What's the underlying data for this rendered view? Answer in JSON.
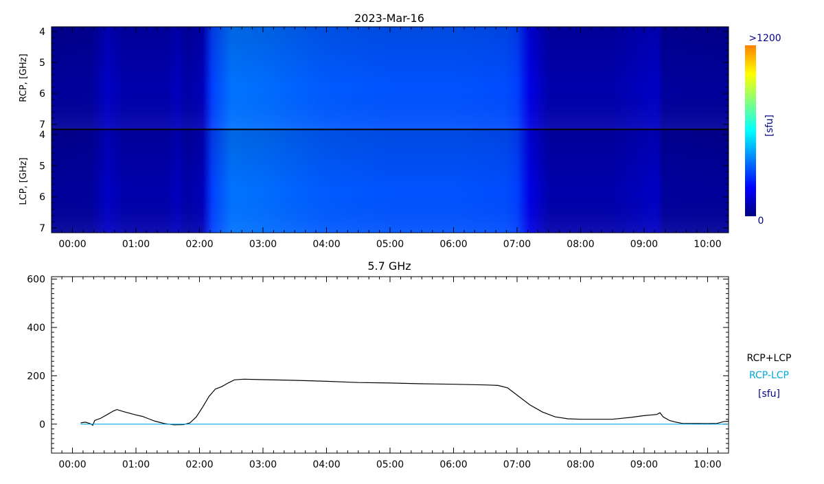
{
  "title": "2023-Mar-16",
  "colors": {
    "axis": "#000000",
    "sum_line": "#000000",
    "diff_line": "#00a8e0",
    "legend_units": "#00008b",
    "colorbar_label": "#00008b"
  },
  "colorbar": {
    "max_label": ">1200",
    "min_label": "0",
    "unit_label": "[sfu]",
    "range": [
      0,
      1200
    ],
    "colors": [
      "#000080",
      "#0000ff",
      "#0080ff",
      "#00ffff",
      "#80ff80",
      "#ffff00",
      "#ff8000"
    ]
  },
  "chart_data": [
    {
      "type": "heatmap",
      "name": "RCP",
      "ylabel": "RCP, [GHz]",
      "ylim": [
        3.85,
        7.15
      ],
      "yticks": [
        "4",
        "5",
        "6",
        "7"
      ],
      "xlim": [
        -0.33,
        10.33
      ],
      "xticks": [
        "00:00",
        "01:00",
        "02:00",
        "03:00",
        "04:00",
        "05:00",
        "06:00",
        "07:00",
        "08:00",
        "09:00",
        "10:00"
      ],
      "value_units": "sfu",
      "time_intensity_profile_sfu": [
        [
          -0.33,
          40
        ],
        [
          0.3,
          45
        ],
        [
          0.55,
          110
        ],
        [
          0.8,
          70
        ],
        [
          1.5,
          70
        ],
        [
          1.65,
          100
        ],
        [
          1.8,
          60
        ],
        [
          2.05,
          90
        ],
        [
          2.2,
          300
        ],
        [
          2.5,
          380
        ],
        [
          3.0,
          370
        ],
        [
          4.0,
          340
        ],
        [
          5.0,
          330
        ],
        [
          6.0,
          330
        ],
        [
          6.8,
          320
        ],
        [
          7.0,
          300
        ],
        [
          7.2,
          160
        ],
        [
          7.5,
          70
        ],
        [
          8.5,
          70
        ],
        [
          9.2,
          110
        ],
        [
          9.3,
          45
        ],
        [
          10.33,
          40
        ]
      ]
    },
    {
      "type": "heatmap",
      "name": "LCP",
      "ylabel": "LCP, [GHz]",
      "ylim": [
        3.85,
        7.15
      ],
      "yticks": [
        "4",
        "5",
        "6",
        "7"
      ],
      "xlim": [
        -0.33,
        10.33
      ],
      "xticks": [
        "00:00",
        "01:00",
        "02:00",
        "03:00",
        "04:00",
        "05:00",
        "06:00",
        "07:00",
        "08:00",
        "09:00",
        "10:00"
      ],
      "value_units": "sfu",
      "time_intensity_profile_sfu": [
        [
          -0.33,
          40
        ],
        [
          0.3,
          45
        ],
        [
          0.55,
          110
        ],
        [
          0.8,
          70
        ],
        [
          1.5,
          70
        ],
        [
          1.65,
          100
        ],
        [
          1.8,
          60
        ],
        [
          2.05,
          90
        ],
        [
          2.2,
          300
        ],
        [
          2.5,
          380
        ],
        [
          3.0,
          370
        ],
        [
          4.0,
          340
        ],
        [
          5.0,
          330
        ],
        [
          6.0,
          330
        ],
        [
          6.8,
          320
        ],
        [
          7.0,
          300
        ],
        [
          7.2,
          160
        ],
        [
          7.5,
          70
        ],
        [
          8.5,
          70
        ],
        [
          9.2,
          110
        ],
        [
          9.3,
          45
        ],
        [
          10.33,
          40
        ]
      ]
    },
    {
      "type": "line",
      "title": "5.7 GHz",
      "ylim": [
        -120,
        610
      ],
      "yticks": [
        0,
        200,
        400,
        600
      ],
      "xlim": [
        -0.33,
        10.33
      ],
      "xticks": [
        "00:00",
        "01:00",
        "02:00",
        "03:00",
        "04:00",
        "05:00",
        "06:00",
        "07:00",
        "08:00",
        "09:00",
        "10:00"
      ],
      "legend": [
        "RCP+LCP",
        "RCP-LCP",
        "[sfu]"
      ],
      "series": [
        {
          "name": "RCP+LCP",
          "x": [
            0.13,
            0.2,
            0.28,
            0.32,
            0.35,
            0.45,
            0.55,
            0.65,
            0.7,
            0.8,
            0.9,
            1.0,
            1.1,
            1.2,
            1.3,
            1.45,
            1.6,
            1.75,
            1.85,
            1.95,
            2.05,
            2.15,
            2.25,
            2.3,
            2.35,
            2.45,
            2.55,
            2.7,
            3.0,
            3.5,
            4.0,
            4.5,
            5.0,
            5.5,
            6.0,
            6.5,
            6.7,
            6.85,
            7.0,
            7.2,
            7.4,
            7.6,
            7.8,
            8.0,
            8.5,
            8.8,
            9.0,
            9.2,
            9.25,
            9.3,
            9.4,
            9.5,
            9.6,
            10.0,
            10.15,
            10.25,
            10.33
          ],
          "values": [
            5,
            8,
            2,
            -5,
            15,
            25,
            40,
            55,
            60,
            52,
            45,
            38,
            32,
            22,
            12,
            2,
            -3,
            -2,
            5,
            30,
            70,
            115,
            145,
            150,
            155,
            170,
            183,
            186,
            184,
            181,
            177,
            172,
            170,
            167,
            165,
            162,
            160,
            150,
            120,
            80,
            50,
            30,
            22,
            20,
            20,
            28,
            35,
            40,
            47,
            30,
            15,
            8,
            3,
            2,
            3,
            10,
            12
          ]
        },
        {
          "name": "RCP-LCP",
          "x": [
            0.13,
            1.0,
            2.0,
            3.0,
            5.0,
            7.0,
            9.0,
            10.33
          ],
          "values": [
            0,
            0,
            0,
            0,
            0,
            0,
            0,
            0
          ]
        }
      ]
    }
  ]
}
